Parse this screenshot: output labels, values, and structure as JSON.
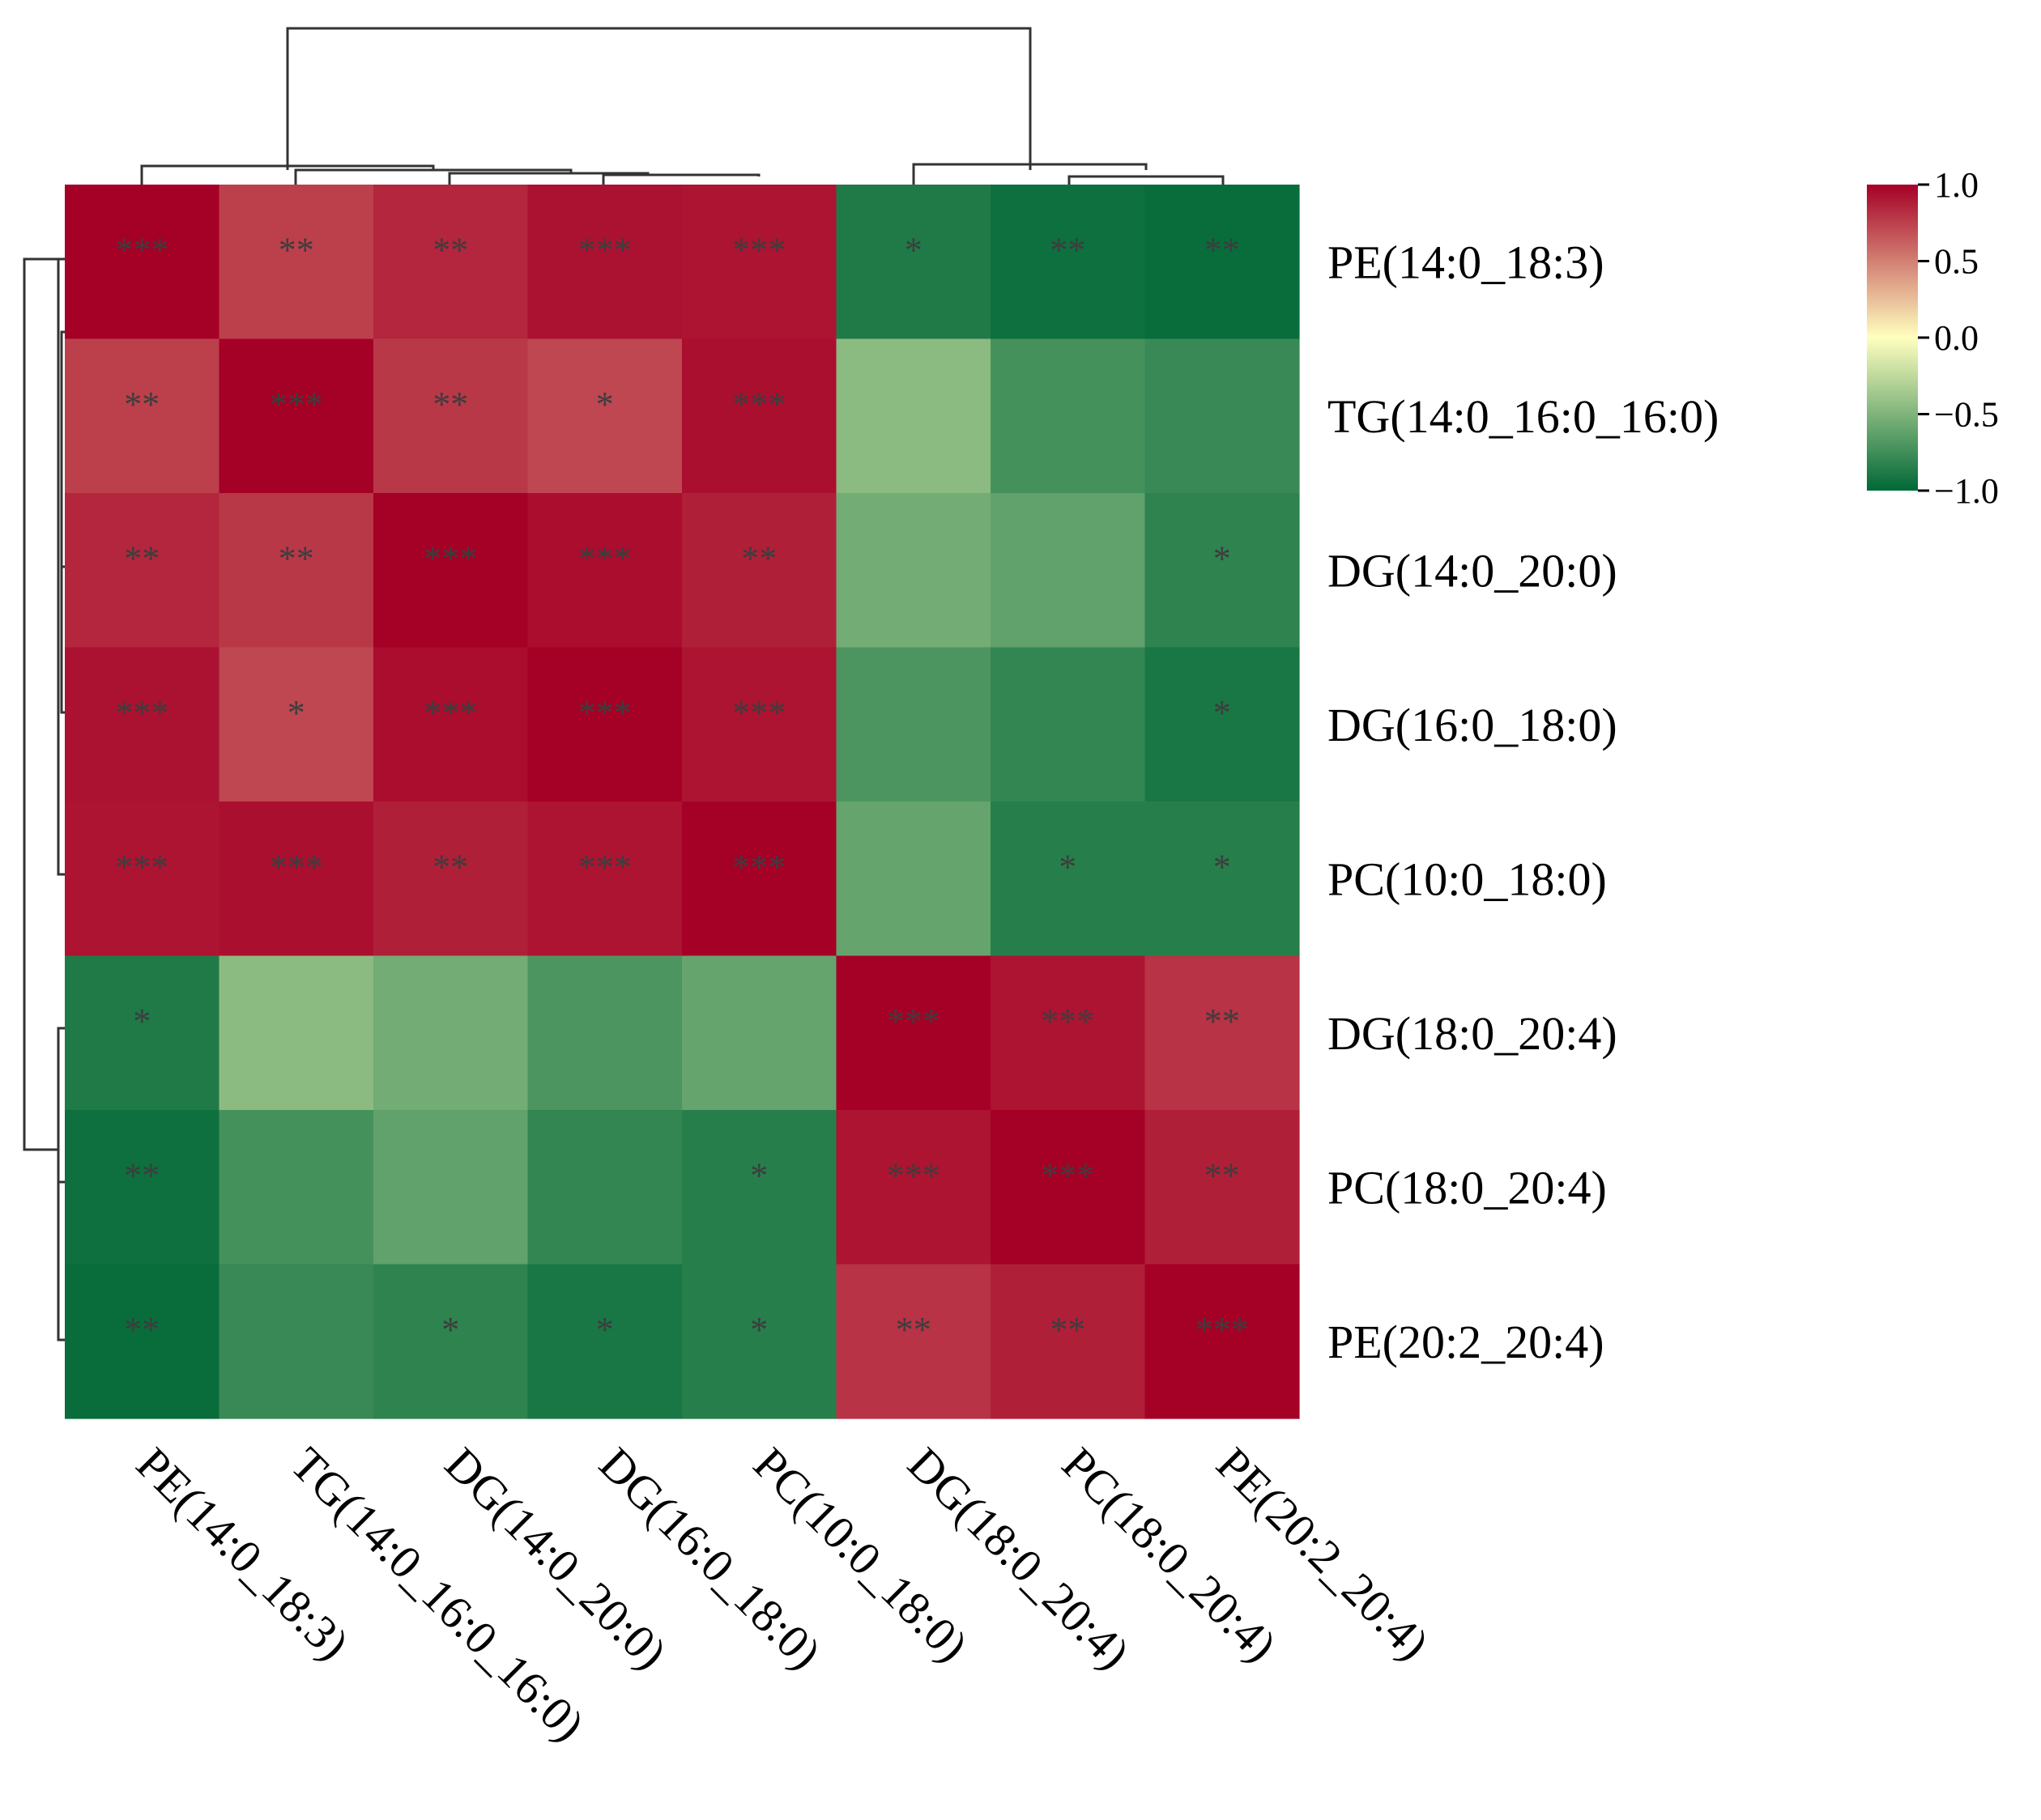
{
  "chart_data": {
    "type": "heatmap",
    "rows": [
      "PE(14:0_18:3)",
      "TG(14:0_16:0_16:0)",
      "DG(14:0_20:0)",
      "DG(16:0_18:0)",
      "PC(10:0_18:0)",
      "DG(18:0_20:4)",
      "PC(18:0_20:4)",
      "PE(20:2_20:4)"
    ],
    "columns": [
      "PE(14:0_18:3)",
      "TG(14:0_16:0_16:0)",
      "DG(14:0_20:0)",
      "DG(16:0_18:0)",
      "PC(10:0_18:0)",
      "DG(18:0_20:4)",
      "PC(18:0_20:4)",
      "PE(20:2_20:4)"
    ],
    "values": [
      [
        1.0,
        0.75,
        0.85,
        0.93,
        0.92,
        -0.88,
        -0.95,
        -0.97
      ],
      [
        0.75,
        1.0,
        0.78,
        0.72,
        0.94,
        -0.45,
        -0.73,
        -0.78
      ],
      [
        0.85,
        0.78,
        1.0,
        0.95,
        0.88,
        -0.55,
        -0.62,
        -0.82
      ],
      [
        0.93,
        0.72,
        0.95,
        1.0,
        0.92,
        -0.7,
        -0.8,
        -0.9
      ],
      [
        0.92,
        0.94,
        0.88,
        0.92,
        1.0,
        -0.6,
        -0.85,
        -0.85
      ],
      [
        -0.88,
        -0.45,
        -0.55,
        -0.7,
        -0.6,
        1.0,
        0.92,
        0.8
      ],
      [
        -0.95,
        -0.73,
        -0.62,
        -0.8,
        -0.85,
        0.92,
        1.0,
        0.88
      ],
      [
        -0.97,
        -0.78,
        -0.82,
        -0.9,
        -0.85,
        0.8,
        0.88,
        1.0
      ]
    ],
    "significance": [
      [
        "***",
        "**",
        "**",
        "***",
        "***",
        "*",
        "**",
        "**"
      ],
      [
        "**",
        "***",
        "**",
        "*",
        "***",
        "",
        "",
        ""
      ],
      [
        "**",
        "**",
        "***",
        "***",
        "**",
        "",
        "",
        "*"
      ],
      [
        "***",
        "*",
        "***",
        "***",
        "***",
        "",
        "",
        "*"
      ],
      [
        "***",
        "***",
        "**",
        "***",
        "***",
        "",
        "*",
        "*"
      ],
      [
        "*",
        "",
        "",
        "",
        "",
        "***",
        "***",
        "**"
      ],
      [
        "**",
        "",
        "",
        "",
        "*",
        "***",
        "***",
        "**"
      ],
      [
        "**",
        "",
        "*",
        "*",
        "*",
        "**",
        "**",
        "***"
      ]
    ],
    "colorbar": {
      "min": -1.0,
      "max": 1.0,
      "ticks": [
        1.0,
        0.5,
        0.0,
        -0.5,
        -1.0
      ],
      "tick_labels": [
        "1.0",
        "0.5",
        "0.0",
        "−0.5",
        "−1.0"
      ],
      "colors": [
        "#006837",
        "#ffffbf",
        "#a50026"
      ],
      "position": "top-right"
    },
    "dendrogram": {
      "top": true,
      "left": true
    }
  }
}
